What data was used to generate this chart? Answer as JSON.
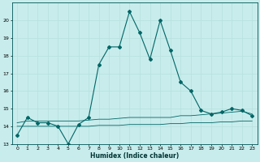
{
  "xlabel": "Humidex (Indice chaleur)",
  "background_color": "#c8ecec",
  "grid_color": "#b8dede",
  "line_color": "#006666",
  "xlim": [
    -0.5,
    23.5
  ],
  "ylim": [
    13,
    21
  ],
  "xticks": [
    0,
    1,
    2,
    3,
    4,
    5,
    6,
    7,
    8,
    9,
    10,
    11,
    12,
    13,
    14,
    15,
    16,
    17,
    18,
    19,
    20,
    21,
    22,
    23
  ],
  "yticks": [
    13,
    14,
    15,
    16,
    17,
    18,
    19,
    20
  ],
  "curve_main_x": [
    0,
    1,
    2,
    3,
    4,
    5,
    6,
    7,
    8,
    9,
    10,
    11,
    12,
    13,
    14,
    15,
    16,
    17,
    18,
    19,
    20,
    21,
    22,
    23
  ],
  "curve_main_y": [
    13.5,
    14.5,
    14.2,
    14.2,
    14.0,
    13.0,
    14.1,
    14.5,
    17.5,
    18.5,
    18.5,
    20.5,
    19.3,
    17.8,
    20.0,
    18.3,
    16.5,
    16.0,
    14.9,
    14.7,
    14.8,
    15.0,
    14.9,
    14.6
  ],
  "curve_max_x": [
    0,
    1,
    2,
    3,
    4,
    5,
    6,
    7,
    8,
    9,
    10,
    11,
    12,
    13,
    14,
    15,
    16,
    17,
    18,
    19,
    20,
    21,
    22,
    23
  ],
  "curve_max_y": [
    14.2,
    14.3,
    14.3,
    14.3,
    14.3,
    14.3,
    14.3,
    14.35,
    14.4,
    14.4,
    14.45,
    14.5,
    14.5,
    14.5,
    14.5,
    14.5,
    14.6,
    14.6,
    14.65,
    14.7,
    14.75,
    14.8,
    14.85,
    14.7
  ],
  "curve_min_x": [
    0,
    1,
    2,
    3,
    4,
    5,
    6,
    7,
    8,
    9,
    10,
    11,
    12,
    13,
    14,
    15,
    16,
    17,
    18,
    19,
    20,
    21,
    22,
    23
  ],
  "curve_min_y": [
    14.0,
    14.0,
    14.0,
    14.0,
    14.0,
    14.0,
    14.0,
    14.0,
    14.05,
    14.05,
    14.05,
    14.1,
    14.1,
    14.1,
    14.1,
    14.15,
    14.15,
    14.2,
    14.2,
    14.2,
    14.25,
    14.25,
    14.3,
    14.3
  ]
}
